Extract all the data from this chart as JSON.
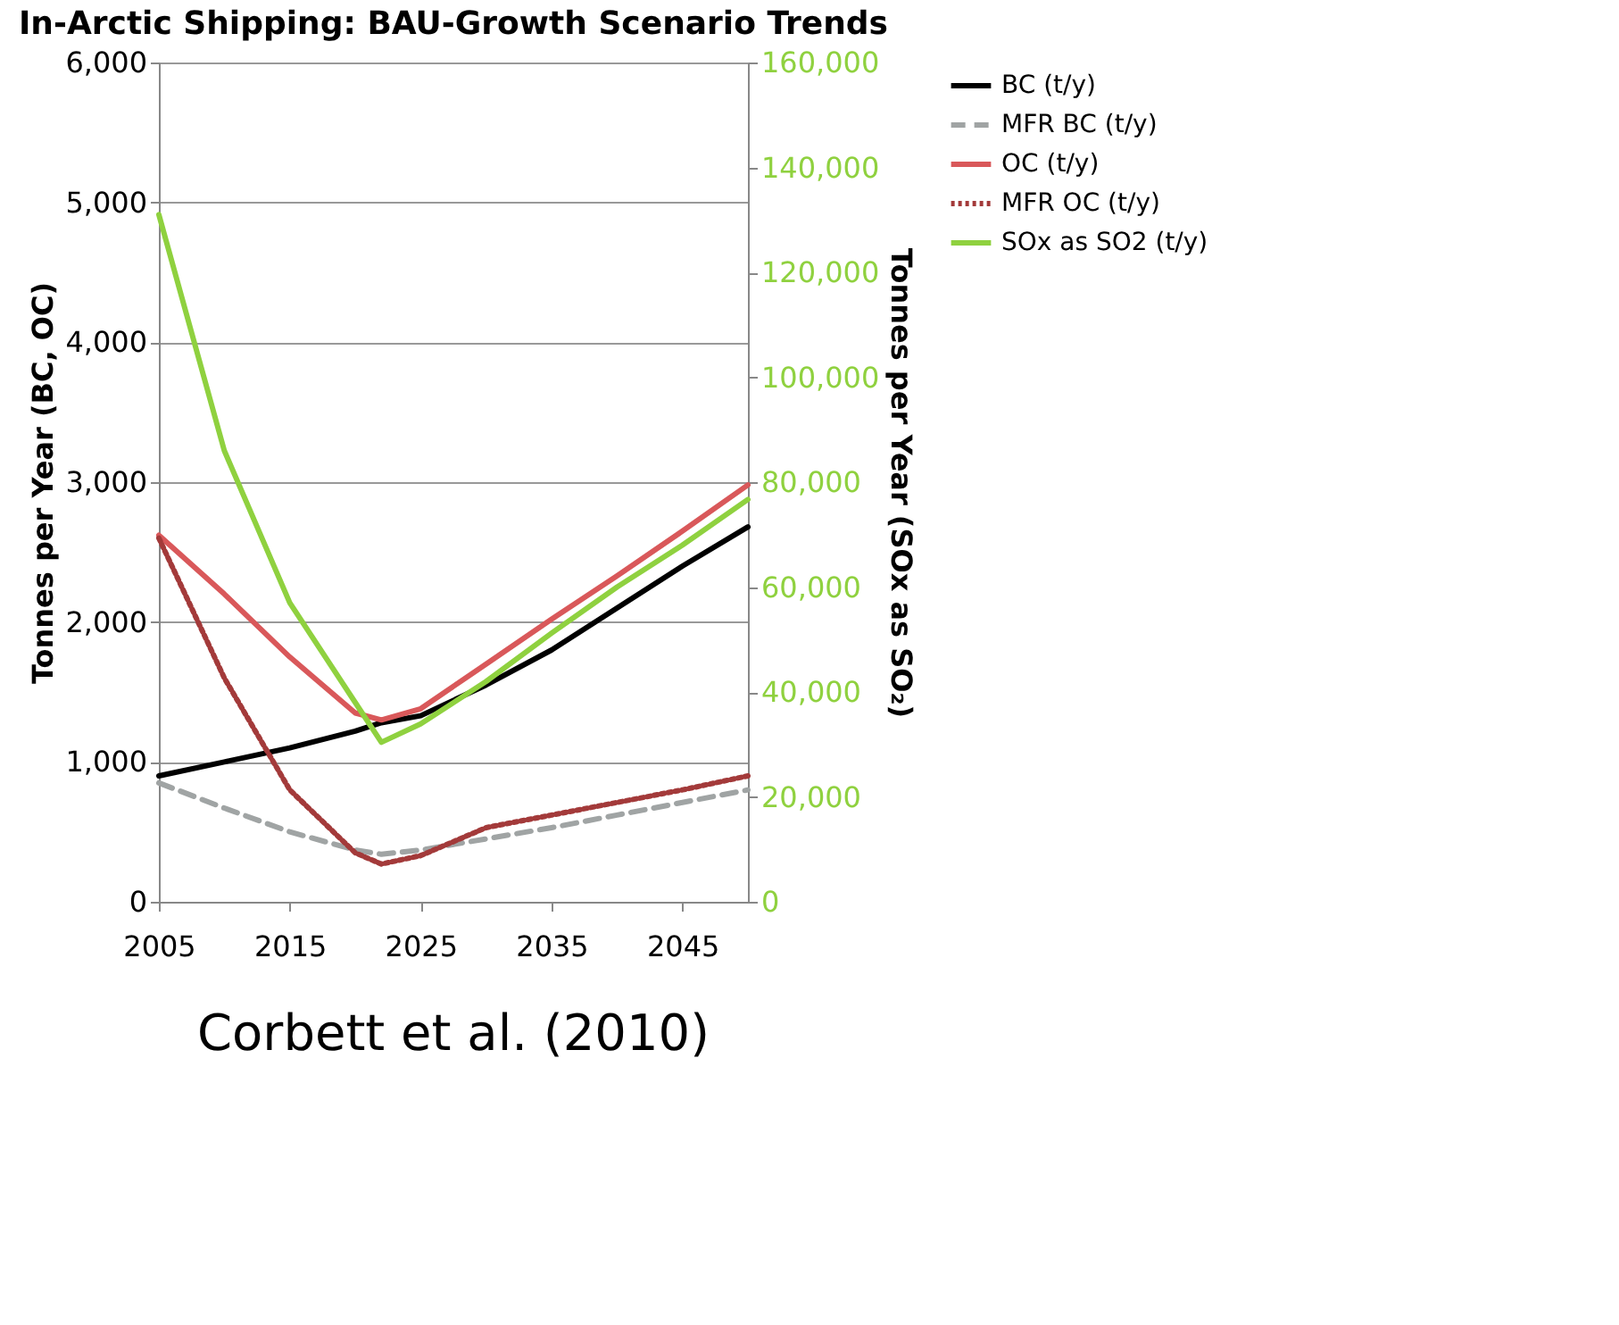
{
  "chart_data": {
    "type": "line",
    "title": "In-Arctic Shipping: BAU-Growth Scenario Trends",
    "ylabel": "Tonnes per Year (BC, OC)",
    "y2label": "Tonnes per Year (SOx as SO₂)",
    "x": [
      2005,
      2010,
      2015,
      2020,
      2022,
      2025,
      2030,
      2035,
      2040,
      2045,
      2050
    ],
    "series": [
      {
        "name": "BC (t/y)",
        "color": "#000000",
        "line_style": "solid",
        "values": [
          900,
          1000,
          1100,
          1220,
          1280,
          1330,
          1550,
          1800,
          2100,
          2400,
          2680
        ]
      },
      {
        "name": "MFR BC (t/y)",
        "color": "#a0a4a4",
        "line_style": "dashed",
        "values": [
          850,
          670,
          500,
          370,
          340,
          370,
          450,
          530,
          620,
          710,
          800
        ]
      },
      {
        "name": "OC (t/y)",
        "color": "#d9585a",
        "line_style": "solid",
        "values": [
          2620,
          2200,
          1750,
          1350,
          1300,
          1380,
          1700,
          2020,
          2330,
          2650,
          2980
        ]
      },
      {
        "name": "MFR OC (t/y)",
        "color": "#a33a3a",
        "line_style": "dotted",
        "values": [
          2600,
          1600,
          800,
          350,
          270,
          330,
          530,
          620,
          710,
          800,
          900
        ]
      },
      {
        "name": "SOx as SO2 (t/y)",
        "color": "#8fd13f",
        "line_style": "solid",
        "axis": "y2",
        "values": [
          131000,
          86000,
          57000,
          38000,
          30400,
          33900,
          42000,
          51200,
          60000,
          68000,
          76700
        ]
      }
    ],
    "xlim": [
      2005,
      2050
    ],
    "xticks": [
      2005,
      2015,
      2025,
      2035,
      2045
    ],
    "ylim": [
      0,
      6000
    ],
    "yticks": [
      0,
      {
        "value": 1000,
        "label": "1,000"
      },
      {
        "value": 2000,
        "label": "2,000"
      },
      {
        "value": 3000,
        "label": "3,000"
      },
      {
        "value": 4000,
        "label": "4,000"
      },
      {
        "value": 5000,
        "label": "5,000"
      },
      {
        "value": 6000,
        "label": "6,000"
      }
    ],
    "y2lim": [
      0,
      160000
    ],
    "y2ticks": [
      0,
      {
        "value": 20000,
        "label": "20,000"
      },
      {
        "value": 40000,
        "label": "40,000"
      },
      {
        "value": 60000,
        "label": "60,000"
      },
      {
        "value": 80000,
        "label": "80,000"
      },
      {
        "value": 100000,
        "label": "100,000"
      },
      {
        "value": 120000,
        "label": "120,000"
      },
      {
        "value": 140000,
        "label": "140,000"
      },
      {
        "value": 160000,
        "label": "160,000"
      }
    ],
    "grid": "y",
    "legend": "right",
    "annotations": [
      "Corbett et al. (2010)"
    ]
  }
}
